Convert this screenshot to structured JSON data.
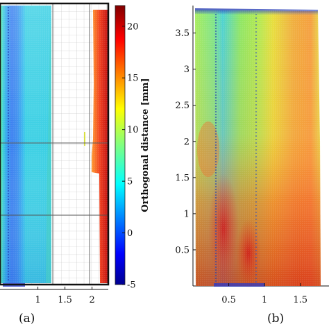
{
  "chart_data": [
    {
      "type": "heatmap",
      "panel_label": "(a)",
      "x_ticks": [
        "1",
        "1.5",
        "2"
      ],
      "x_tick_values": [
        1,
        1.5,
        2
      ],
      "xlim": [
        0.3,
        2.3
      ],
      "colorbar": {
        "title": "Orthogonal distance [mm]",
        "ticks": [
          20,
          15,
          10,
          5,
          0,
          -5
        ],
        "range": [
          -5,
          22
        ],
        "colormap": "jet"
      }
    },
    {
      "type": "heatmap",
      "panel_label": "(b)",
      "x_ticks": [
        "0.5",
        "1",
        "1.5"
      ],
      "x_tick_values": [
        0.5,
        1,
        1.5
      ],
      "y_ticks": [
        "0.5",
        "1",
        "1.5",
        "2",
        "2.5",
        "3",
        "3.5"
      ],
      "y_tick_values": [
        0.5,
        1,
        1.5,
        2,
        2.5,
        3,
        3.5
      ],
      "xlim": [
        0,
        1.9
      ],
      "ylim": [
        0,
        3.88
      ]
    }
  ]
}
